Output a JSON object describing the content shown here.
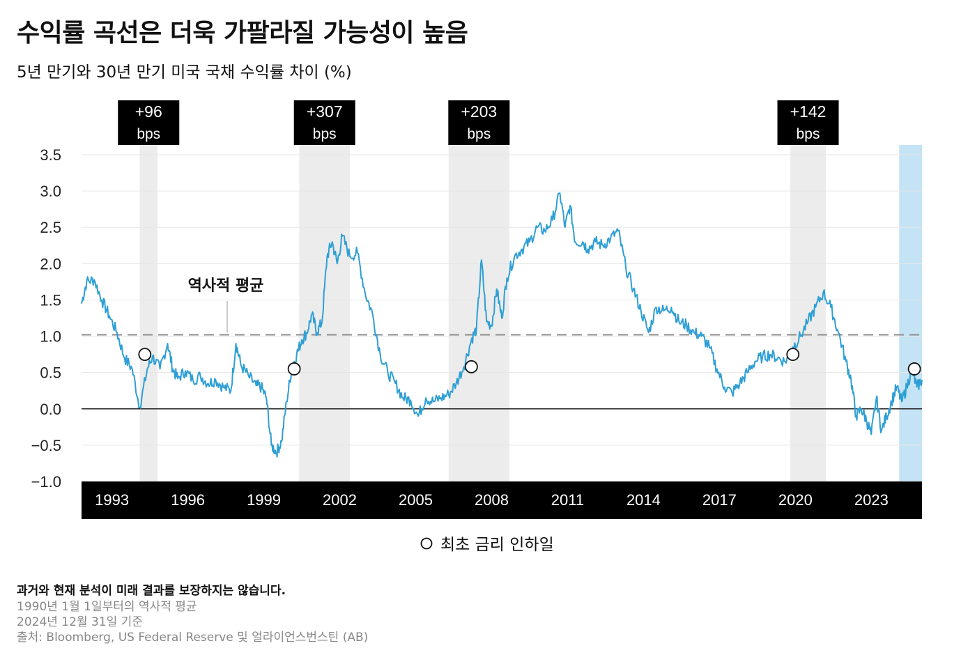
{
  "title": "수익률 곡선은 더욱 가팔라질 가능성이 높음",
  "subtitle": "5년 만기와 30년 만기 미국 국채 수익률 차이 (%)",
  "colors": {
    "line": "#2e9fd4",
    "shade": "#ececec",
    "highlight": "#c4e3f5",
    "axis_band": "#000000",
    "average": "#8c8c8c",
    "zero": "#222222"
  },
  "chart_data": {
    "type": "line",
    "title": "5년 만기와 30년 만기 미국 국채 수익률 차이 (%)",
    "xlabel": "",
    "ylabel": "",
    "xlim": [
      1991.8,
      2025.0
    ],
    "ylim": [
      -1.0,
      3.5
    ],
    "x_ticks": [
      1993,
      1996,
      1999,
      2002,
      2005,
      2008,
      2011,
      2014,
      2017,
      2020,
      2023
    ],
    "x_tick_labels": [
      "1993",
      "1996",
      "1999",
      "2002",
      "2005",
      "2008",
      "2011",
      "2014",
      "2017",
      "2020",
      "2023"
    ],
    "y_ticks": [
      3.5,
      3.0,
      2.5,
      2.0,
      1.5,
      1.0,
      0.5,
      0.0,
      -0.5,
      -1.0
    ],
    "y_tick_labels": [
      "3.5",
      "3.0",
      "2.5",
      "2.0",
      "1.5",
      "1.0",
      "0.5",
      "0.0",
      "−0.5",
      "−1.0"
    ],
    "grid": true,
    "historical_average": {
      "value": 1.02,
      "label": "역사적 평균"
    },
    "series": [
      {
        "x": [
          1991.8,
          1992.0,
          1992.3,
          1992.6,
          1992.9,
          1993.2,
          1993.5,
          1993.8,
          1994.1,
          1994.4,
          1994.6,
          1994.9,
          1995.2,
          1995.4,
          1995.6,
          1995.9,
          1996.2,
          1996.5,
          1996.8,
          1997.1,
          1997.4,
          1997.7,
          1997.9,
          1998.1,
          1998.4,
          1998.7,
          1998.9,
          1999.1,
          1999.3,
          1999.5,
          1999.7,
          1999.9,
          2000.1,
          2000.3,
          2000.5,
          2000.7,
          2000.9,
          2001.1,
          2001.3,
          2001.5,
          2001.7,
          2001.9,
          2002.1,
          2002.4,
          2002.7,
          2003.0,
          2003.3,
          2003.6,
          2003.9,
          2004.2,
          2004.5,
          2004.8,
          2005.1,
          2005.4,
          2005.7,
          2006.0,
          2006.3,
          2006.6,
          2006.9,
          2007.2,
          2007.4,
          2007.6,
          2007.8,
          2008.0,
          2008.2,
          2008.4,
          2008.6,
          2008.9,
          2009.2,
          2009.5,
          2009.8,
          2010.1,
          2010.4,
          2010.7,
          2010.9,
          2011.1,
          2011.3,
          2011.6,
          2011.8,
          2012.1,
          2012.4,
          2012.7,
          2013.0,
          2013.3,
          2013.6,
          2013.9,
          2014.2,
          2014.5,
          2014.8,
          2015.1,
          2015.4,
          2015.7,
          2016.0,
          2016.3,
          2016.6,
          2016.9,
          2017.2,
          2017.5,
          2017.8,
          2018.1,
          2018.4,
          2018.7,
          2019.0,
          2019.3,
          2019.6,
          2019.9,
          2020.2,
          2020.5,
          2020.8,
          2021.1,
          2021.4,
          2021.7,
          2022.0,
          2022.2,
          2022.4,
          2022.6,
          2022.8,
          2023.0,
          2023.2,
          2023.4,
          2023.6,
          2023.8,
          2024.0,
          2024.2,
          2024.4,
          2024.6,
          2024.8,
          2025.0
        ],
        "values": [
          1.45,
          1.75,
          1.78,
          1.5,
          1.28,
          1.05,
          0.7,
          0.55,
          0.02,
          0.55,
          0.72,
          0.55,
          0.9,
          0.55,
          0.42,
          0.52,
          0.4,
          0.45,
          0.35,
          0.4,
          0.3,
          0.25,
          0.9,
          0.6,
          0.45,
          0.32,
          0.3,
          0.15,
          -0.5,
          -0.6,
          -0.45,
          0.1,
          0.55,
          0.75,
          0.95,
          1.05,
          1.3,
          1.05,
          1.2,
          2.1,
          2.3,
          2.0,
          2.38,
          2.1,
          2.15,
          1.6,
          1.3,
          0.75,
          0.5,
          0.35,
          0.15,
          0.12,
          -0.1,
          0.15,
          0.1,
          0.15,
          0.2,
          0.35,
          0.58,
          0.95,
          1.1,
          2.05,
          1.2,
          1.15,
          1.65,
          1.25,
          1.8,
          2.1,
          2.2,
          2.3,
          2.5,
          2.45,
          2.6,
          2.97,
          2.5,
          2.8,
          2.3,
          2.3,
          2.2,
          2.3,
          2.25,
          2.35,
          2.45,
          1.95,
          1.65,
          1.35,
          1.05,
          1.4,
          1.35,
          1.4,
          1.2,
          1.15,
          1.05,
          1.0,
          0.85,
          0.55,
          0.3,
          0.22,
          0.35,
          0.5,
          0.65,
          0.72,
          0.75,
          0.7,
          0.65,
          0.85,
          1.0,
          1.2,
          1.4,
          1.6,
          1.4,
          1.05,
          0.65,
          0.4,
          -0.1,
          0.0,
          -0.15,
          -0.35,
          0.15,
          -0.3,
          -0.1,
          0.1,
          0.3,
          0.1,
          0.3,
          0.55,
          0.3,
          0.4
        ]
      }
    ],
    "shaded_periods": [
      [
        1994.1,
        1994.8
      ],
      [
        2000.4,
        2002.4
      ],
      [
        2006.3,
        2008.7
      ],
      [
        2019.8,
        2021.2
      ]
    ],
    "highlight_period": [
      2024.1,
      2025.0
    ],
    "easing_annotations": [
      {
        "label_top": "+96",
        "label_bottom": "bps",
        "cut_x": 1994.3,
        "cut_y": 0.75
      },
      {
        "label_top": "+307",
        "label_bottom": "bps",
        "cut_x": 2000.2,
        "cut_y": 0.55
      },
      {
        "label_top": "+203",
        "label_bottom": "bps",
        "cut_x": 2007.2,
        "cut_y": 0.58
      },
      {
        "label_top": "+142",
        "label_bottom": "bps",
        "cut_x": 2019.9,
        "cut_y": 0.75
      },
      {
        "label_top": "",
        "label_bottom": "",
        "cut_x": 2024.7,
        "cut_y": 0.55
      }
    ],
    "legend": {
      "items": [
        "최초 금리 인하일"
      ],
      "position": "bottom"
    }
  },
  "footnotes": [
    "과거와 현재 분석이 미래 결과를 보장하지는 않습니다.",
    "1990년 1월 1일부터의 역사적 평균",
    "2024년 12월 31일 기준",
    "출처: Bloomberg, US Federal Reserve 및 얼라이언스번스틴 (AB)"
  ]
}
